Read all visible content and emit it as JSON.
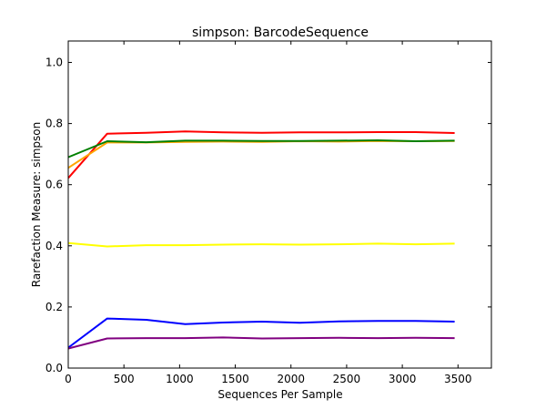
{
  "chart_data": {
    "type": "line",
    "title": "simpson: BarcodeSequence",
    "xlabel": "Sequences Per Sample",
    "ylabel": "Rarefaction Measure: simpson",
    "xlim": [
      0,
      3800
    ],
    "ylim": [
      0.0,
      1.07
    ],
    "xticks": [
      0,
      500,
      1000,
      1500,
      2000,
      2500,
      3000,
      3500
    ],
    "yticks": [
      0.0,
      0.2,
      0.4,
      0.6,
      0.8,
      1.0
    ],
    "xtick_labels": [
      "0",
      "500",
      "1000",
      "1500",
      "2000",
      "2500",
      "3000",
      "3500"
    ],
    "ytick_labels": [
      "0.0",
      "0.2",
      "0.4",
      "0.6",
      "0.8",
      "1.0"
    ],
    "grid": false,
    "legend": "none",
    "x": [
      1,
      350,
      700,
      1050,
      1390,
      1740,
      2080,
      2430,
      2780,
      3120,
      3470
    ],
    "series": [
      {
        "color": "#ff0000",
        "values": [
          0.622,
          0.767,
          0.77,
          0.774,
          0.771,
          0.77,
          0.771,
          0.771,
          0.772,
          0.772,
          0.769
        ]
      },
      {
        "color": "#ffa500",
        "values": [
          0.655,
          0.738,
          0.738,
          0.74,
          0.741,
          0.74,
          0.742,
          0.741,
          0.743,
          0.742,
          0.743
        ]
      },
      {
        "color": "#008000",
        "values": [
          0.69,
          0.742,
          0.739,
          0.744,
          0.744,
          0.743,
          0.743,
          0.744,
          0.745,
          0.742,
          0.744
        ]
      },
      {
        "color": "#ffff00",
        "values": [
          0.409,
          0.398,
          0.402,
          0.402,
          0.404,
          0.405,
          0.404,
          0.405,
          0.407,
          0.405,
          0.407
        ]
      },
      {
        "color": "#0000ff",
        "values": [
          0.067,
          0.162,
          0.158,
          0.144,
          0.149,
          0.152,
          0.148,
          0.153,
          0.154,
          0.154,
          0.152
        ]
      },
      {
        "color": "#800080",
        "values": [
          0.064,
          0.097,
          0.098,
          0.098,
          0.1,
          0.097,
          0.098,
          0.099,
          0.098,
          0.099,
          0.098
        ]
      }
    ]
  }
}
